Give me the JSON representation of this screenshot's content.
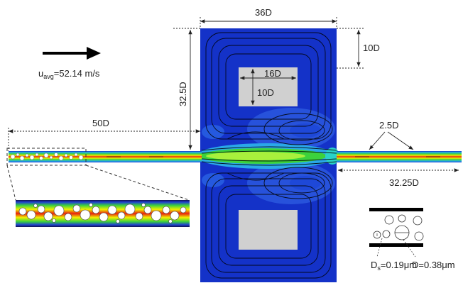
{
  "labels": {
    "width_top": "36D",
    "right_gap": "10D",
    "height_left": "32.5D",
    "inlet_length": "50D",
    "obstacle_width": "16D",
    "obstacle_height": "10D",
    "channel_width": "2.5D",
    "outlet_length": "32.25D"
  },
  "velocity": {
    "symbol": "u",
    "subscript": "avg",
    "value": "=52.14 m/s"
  },
  "particles": {
    "small_symbol": "D",
    "small_subscript": "s",
    "small_value": "=0.19μm",
    "large_value": "D=0.38μm"
  },
  "colors": {
    "domain_blue": "#1432c8",
    "obstacle_gray": "#d0d0d0",
    "jet_green": "#3cd23c",
    "jet_yellow": "#f0f000",
    "jet_red": "#e82010"
  }
}
